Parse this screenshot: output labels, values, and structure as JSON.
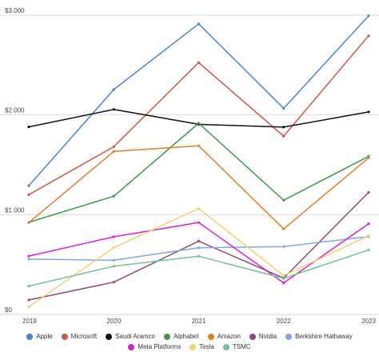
{
  "chart_data": {
    "type": "line",
    "x": [
      "2019",
      "2020",
      "2021",
      "2022",
      "2023"
    ],
    "y_ticks": [
      "$0",
      "$1.000",
      "$2.000",
      "$3.000"
    ],
    "ylim": [
      0,
      3000
    ],
    "grid": "horizontal",
    "legend_position": "bottom",
    "series": [
      {
        "name": "Apple",
        "color": "#4a86c8",
        "values": [
          1290,
          2255,
          2913,
          2066,
          2994
        ]
      },
      {
        "name": "Microsoft",
        "color": "#cc5544",
        "values": [
          1200,
          1681,
          2525,
          1787,
          2794
        ]
      },
      {
        "name": "Saudi Aramco",
        "color": "#111111",
        "values": [
          1880,
          2055,
          1906,
          1878,
          2030
        ]
      },
      {
        "name": "Alphabet",
        "color": "#3e9a4a",
        "values": [
          923,
          1185,
          1917,
          1145,
          1585
        ]
      },
      {
        "name": "Amazon",
        "color": "#e67e22",
        "values": [
          920,
          1634,
          1691,
          857,
          1570
        ]
      },
      {
        "name": "Nvidia",
        "color": "#8e4a7b",
        "values": [
          144,
          323,
          735,
          364,
          1223
        ]
      },
      {
        "name": "Berkshire Hathaway",
        "color": "#7ea6e0",
        "values": [
          554,
          543,
          668,
          680,
          780
        ]
      },
      {
        "name": "Meta Platforms",
        "color": "#d61fd6",
        "values": [
          585,
          778,
          922,
          316,
          909
        ]
      },
      {
        "name": "Tesla",
        "color": "#f2d26b",
        "values": [
          76,
          669,
          1061,
          389,
          789
        ]
      },
      {
        "name": "TSMC",
        "color": "#6fc193",
        "values": [
          284,
          483,
          583,
          362,
          645
        ]
      }
    ],
    "legend_rows": [
      [
        "Apple",
        "Microsoft",
        "Saudi Aramco",
        "Alphabet",
        "Amazon",
        "Nvidia",
        "Berkshire Hathaway"
      ],
      [
        "Meta Platforms",
        "Tesla",
        "TSMC"
      ]
    ]
  }
}
